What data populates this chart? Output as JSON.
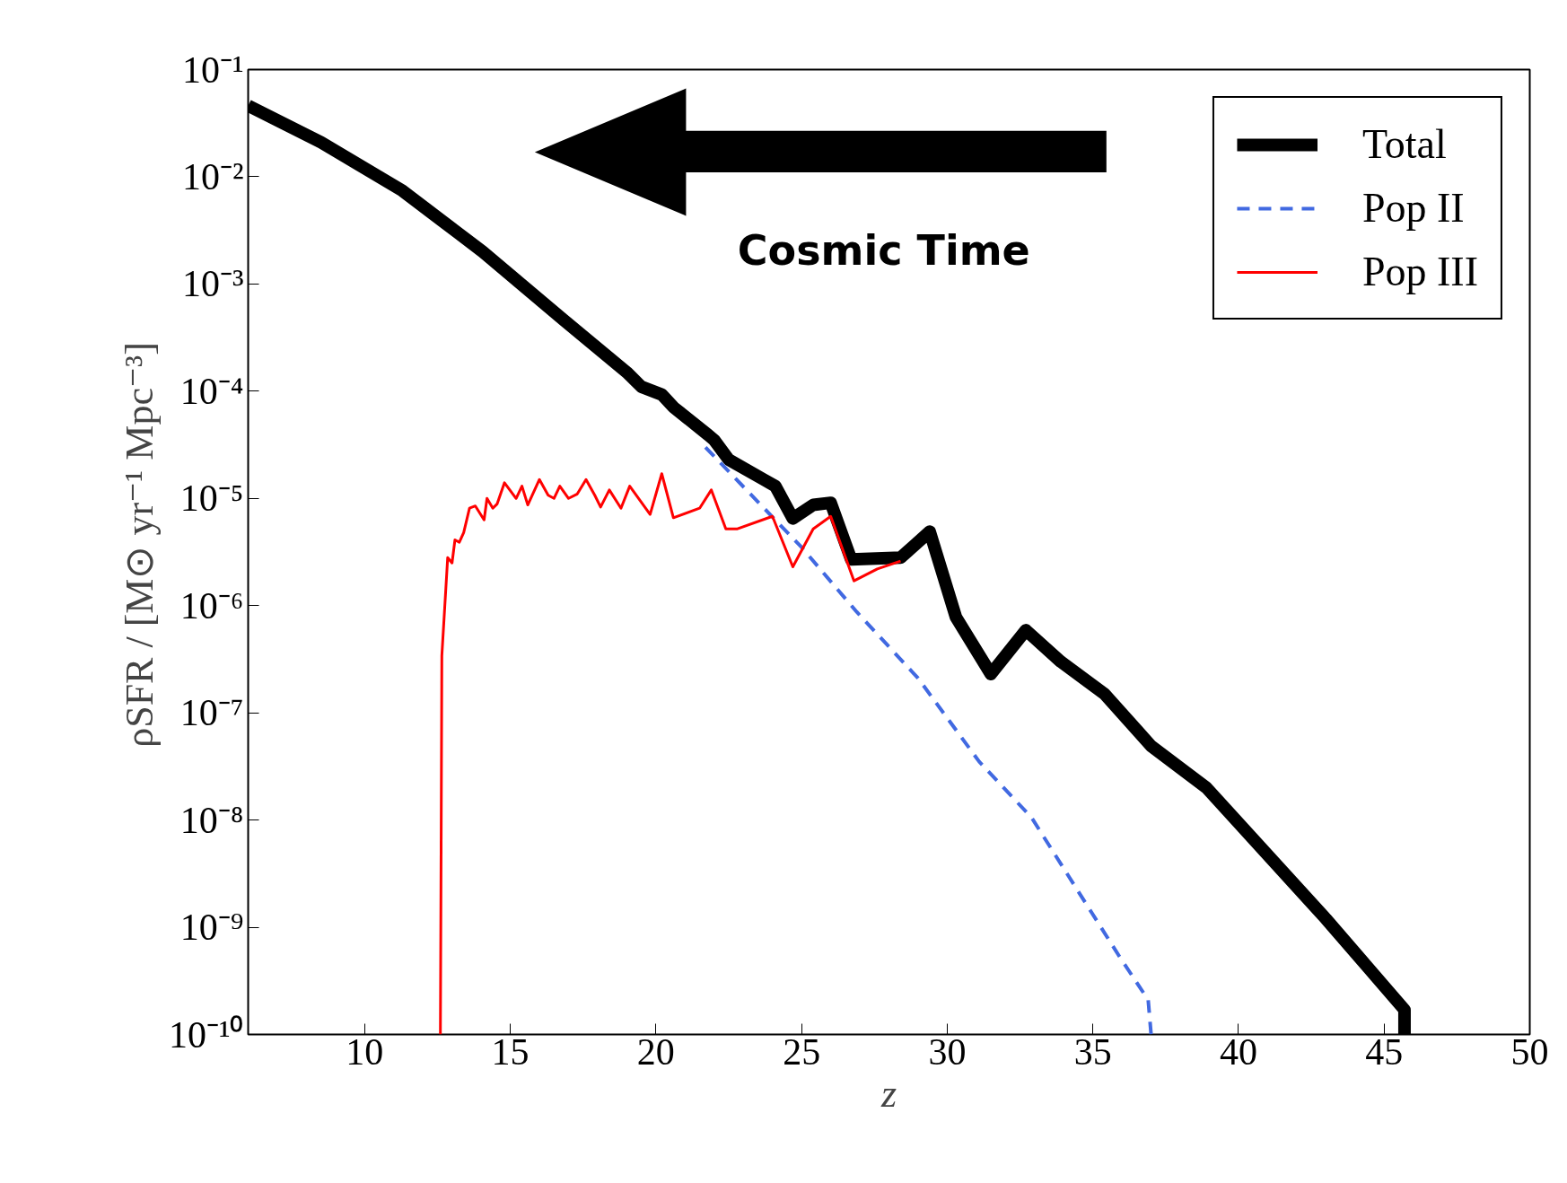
{
  "chart_data": {
    "type": "line",
    "xlabel": "z",
    "ylabel": "ρSFR / [M⊙ yr⁻¹ Mpc⁻³]",
    "annotations": [
      "Cosmic Time"
    ],
    "log": "y",
    "grid": false,
    "legend": "top right",
    "marker": "none",
    "xlim": [
      6,
      50
    ],
    "xticks": [
      10,
      15,
      20,
      25,
      30,
      35,
      40,
      45,
      50
    ],
    "ylim": [
      1e-10,
      0.1
    ],
    "yticks": [
      {
        "value": 0.1,
        "label": "10⁻¹"
      },
      {
        "value": 0.01,
        "label": "10⁻²"
      },
      {
        "value": 0.001,
        "label": "10⁻³"
      },
      {
        "value": 0.0001,
        "label": "10⁻⁴"
      },
      {
        "value": 1e-05,
        "label": "10⁻⁵"
      },
      {
        "value": 1e-06,
        "label": "10⁻⁶"
      },
      {
        "value": 1e-07,
        "label": "10⁻⁷"
      },
      {
        "value": 1e-08,
        "label": "10⁻⁸"
      },
      {
        "value": 1e-09,
        "label": "10⁻⁹"
      },
      {
        "value": 1e-10,
        "label": "10⁻¹⁰"
      }
    ],
    "series": [
      {
        "name": "Total",
        "color": "#000000",
        "line_style": "solid",
        "x": [
          6,
          8.5,
          11.3,
          14.05,
          16.8,
          19.0,
          19.5,
          20.2,
          20.6,
          21.8,
          22.0,
          22.5,
          23.7,
          24.1,
          24.7,
          25.4,
          26.0,
          26.7,
          28.4,
          29.4,
          30.3,
          31.5,
          32.7,
          33.9,
          35.4,
          37.0,
          38.9,
          43.0,
          45.7,
          45.7
        ],
        "values": [
          0.046,
          0.021,
          0.0074,
          0.002,
          0.00047,
          0.00015,
          0.00011,
          9.3e-05,
          7.1e-05,
          3.9e-05,
          3.5e-05,
          2.3e-05,
          1.5e-05,
          1.3e-05,
          6.5e-06,
          8.7e-06,
          9.1e-06,
          2.7e-06,
          2.8e-06,
          4.9e-06,
          7.8e-07,
          2.3e-07,
          5.9e-07,
          3e-07,
          1.5e-07,
          4.9e-08,
          2e-08,
          1.2e-09,
          1.7e-10,
          1e-10
        ]
      },
      {
        "name": "Pop II",
        "color": "#4169e1",
        "line_style": "dashed",
        "x": [
          21.7,
          25.0,
          26.9,
          29.0,
          31.1,
          32.9,
          35.9,
          36.9,
          37.0
        ],
        "values": [
          3e-05,
          3.5e-06,
          8.7e-07,
          2.1e-07,
          3.5e-08,
          1.05e-08,
          5.4e-10,
          2.1e-10,
          1e-10
        ]
      },
      {
        "name": "Pop III",
        "color": "#ff0000",
        "line_style": "solid",
        "x": [
          12.6,
          12.65,
          12.85,
          13.0,
          13.1,
          13.25,
          13.4,
          13.6,
          13.8,
          14.1,
          14.2,
          14.4,
          14.55,
          14.8,
          15.2,
          15.4,
          15.6,
          16.0,
          16.3,
          16.5,
          16.7,
          17.0,
          17.3,
          17.6,
          17.9,
          18.1,
          18.4,
          18.8,
          19.1,
          19.8,
          20.2,
          20.6,
          21.5,
          21.9,
          22.4,
          22.8,
          24.0,
          24.7,
          25.4,
          26.0,
          26.8,
          27.6,
          28.4
        ],
        "values": [
          1e-10,
          3.4e-07,
          2.8e-06,
          2.5e-06,
          4.1e-06,
          3.9e-06,
          4.8e-06,
          8.1e-06,
          8.5e-06,
          6.3e-06,
          1e-05,
          8.1e-06,
          8.9e-06,
          1.4e-05,
          1e-05,
          1.3e-05,
          8.7e-06,
          1.5e-05,
          1.07e-05,
          1e-05,
          1.3e-05,
          1e-05,
          1.1e-05,
          1.5e-05,
          1.07e-05,
          8.3e-06,
          1.2e-05,
          8.1e-06,
          1.3e-05,
          7.1e-06,
          1.7e-05,
          6.6e-06,
          8.1e-06,
          1.2e-05,
          5.2e-06,
          5.2e-06,
          6.8e-06,
          2.3e-06,
          5.2e-06,
          6.8e-06,
          1.7e-06,
          2.2e-06,
          2.6e-06
        ]
      }
    ]
  }
}
